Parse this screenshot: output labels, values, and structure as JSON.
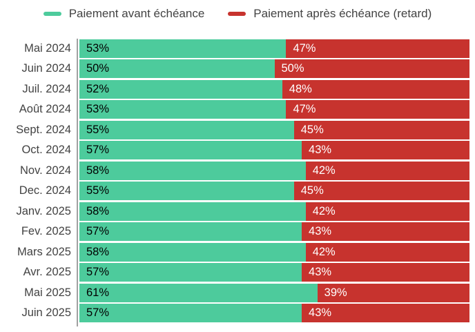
{
  "legend": {
    "items": [
      {
        "label": "Paiement avant échéance",
        "color": "#4DCB9C"
      },
      {
        "label": "Paiement après échéance (retard)",
        "color": "#C7332E"
      }
    ]
  },
  "colors": {
    "series_avant": "#4DCB9C",
    "series_apres": "#C7332E",
    "category_label": "#424242",
    "value_on_avant": "#000000",
    "value_on_apres": "#ffffff",
    "axis_line": "#a0a0a0",
    "background": "#ffffff"
  },
  "chart_data": {
    "type": "bar",
    "orientation": "horizontal",
    "stacked": true,
    "legend_position": "top",
    "grid": false,
    "xlim": [
      0,
      100
    ],
    "value_suffix": "%",
    "categories": [
      "Mai 2024",
      "Juin 2024",
      "Juil. 2024",
      "Août 2024",
      "Sept. 2024",
      "Oct. 2024",
      "Nov. 2024",
      "Dec. 2024",
      "Janv. 2025",
      "Fev. 2025",
      "Mars 2025",
      "Avr. 2025",
      "Mai 2025",
      "Juin 2025"
    ],
    "series": [
      {
        "name": "Paiement avant échéance",
        "color": "#4DCB9C",
        "values": [
          53,
          50,
          52,
          53,
          55,
          57,
          58,
          55,
          58,
          57,
          58,
          57,
          61,
          57
        ]
      },
      {
        "name": "Paiement après échéance (retard)",
        "color": "#C7332E",
        "values": [
          47,
          50,
          48,
          47,
          45,
          43,
          42,
          45,
          42,
          43,
          42,
          43,
          39,
          43
        ]
      }
    ]
  }
}
